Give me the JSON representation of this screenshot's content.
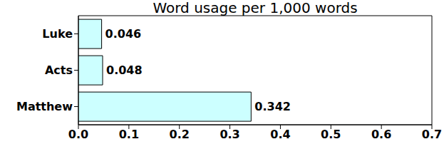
{
  "chart_data": {
    "type": "bar",
    "title": "Word usage per 1,000 words",
    "orientation": "horizontal",
    "categories": [
      "Luke",
      "Acts",
      "Matthew"
    ],
    "values": [
      0.046,
      0.048,
      0.342
    ],
    "color": "#ccffff",
    "xlim": [
      0,
      0.7
    ],
    "xticks": [
      {
        "value": 0,
        "label": "0.0"
      },
      0.1,
      0.2,
      0.3,
      0.4,
      0.5,
      0.6,
      0.7
    ],
    "data_labels": true,
    "grid": false
  }
}
